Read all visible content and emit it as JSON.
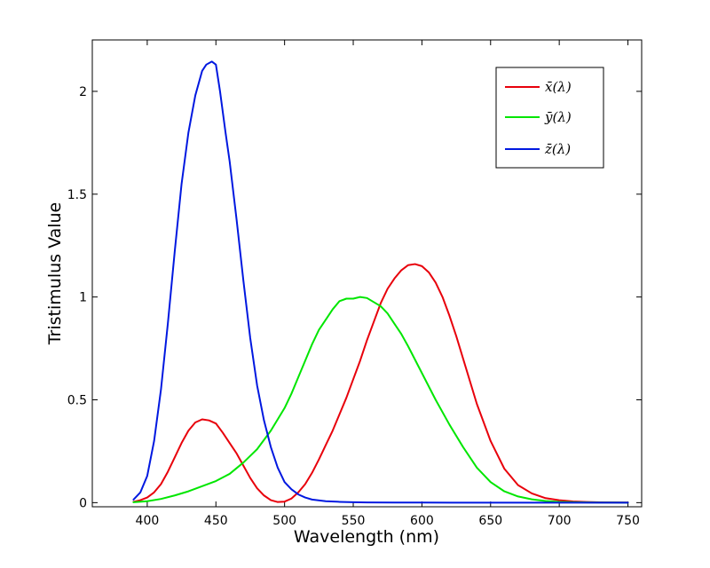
{
  "chart_data": {
    "type": "line",
    "title": "",
    "xlabel": "Wavelength (nm)",
    "ylabel": "Tristimulus Value",
    "xlim": [
      360,
      760
    ],
    "ylim": [
      -0.02,
      2.25
    ],
    "xticks": [
      400,
      450,
      500,
      550,
      600,
      650,
      700,
      750
    ],
    "xtick_labels": [
      "400",
      "450",
      "500",
      "550",
      "600",
      "650",
      "700",
      "750"
    ],
    "yticks": [
      0,
      0.5,
      1,
      1.5,
      2
    ],
    "ytick_labels": [
      "0",
      "0.5",
      "1",
      "1.5",
      "2"
    ],
    "grid": false,
    "legend_position": "top-right",
    "series": [
      {
        "name": "x̄(λ)",
        "color": "#e8000b",
        "x": [
          390,
          395,
          400,
          405,
          410,
          415,
          420,
          425,
          430,
          435,
          440,
          445,
          450,
          455,
          460,
          465,
          470,
          475,
          480,
          485,
          490,
          495,
          500,
          505,
          510,
          515,
          520,
          525,
          530,
          535,
          540,
          545,
          550,
          555,
          560,
          565,
          570,
          575,
          580,
          585,
          590,
          595,
          600,
          605,
          610,
          615,
          620,
          625,
          630,
          640,
          650,
          660,
          670,
          680,
          690,
          700,
          710,
          720,
          730,
          740,
          750
        ],
        "y": [
          0.004,
          0.012,
          0.025,
          0.05,
          0.09,
          0.15,
          0.22,
          0.29,
          0.35,
          0.39,
          0.405,
          0.4,
          0.385,
          0.34,
          0.29,
          0.24,
          0.18,
          0.12,
          0.07,
          0.035,
          0.012,
          0.003,
          0.005,
          0.02,
          0.05,
          0.09,
          0.145,
          0.21,
          0.28,
          0.35,
          0.43,
          0.51,
          0.6,
          0.69,
          0.79,
          0.88,
          0.97,
          1.04,
          1.09,
          1.13,
          1.155,
          1.16,
          1.15,
          1.12,
          1.07,
          1.0,
          0.91,
          0.81,
          0.7,
          0.48,
          0.3,
          0.165,
          0.085,
          0.045,
          0.022,
          0.012,
          0.006,
          0.003,
          0.0015,
          0.0008,
          0.0004
        ]
      },
      {
        "name": "ȳ(λ)",
        "color": "#00e600",
        "x": [
          390,
          400,
          410,
          420,
          430,
          440,
          450,
          460,
          470,
          480,
          490,
          500,
          505,
          510,
          515,
          520,
          525,
          530,
          535,
          540,
          545,
          550,
          555,
          560,
          565,
          570,
          575,
          580,
          585,
          590,
          600,
          610,
          620,
          630,
          640,
          650,
          660,
          670,
          680,
          690,
          700,
          710,
          720,
          730,
          740,
          750
        ],
        "y": [
          0.002,
          0.007,
          0.018,
          0.035,
          0.055,
          0.08,
          0.105,
          0.14,
          0.195,
          0.26,
          0.35,
          0.46,
          0.53,
          0.61,
          0.69,
          0.77,
          0.84,
          0.89,
          0.94,
          0.98,
          0.992,
          0.992,
          1.0,
          0.995,
          0.975,
          0.955,
          0.92,
          0.87,
          0.82,
          0.76,
          0.63,
          0.5,
          0.38,
          0.27,
          0.17,
          0.1,
          0.055,
          0.03,
          0.016,
          0.008,
          0.004,
          0.002,
          0.001,
          0.0006,
          0.0003,
          0.0002
        ]
      },
      {
        "name": "z̄(λ)",
        "color": "#0018e0",
        "x": [
          390,
          395,
          400,
          405,
          410,
          415,
          420,
          425,
          430,
          435,
          440,
          443,
          447,
          450,
          453,
          457,
          460,
          465,
          470,
          475,
          480,
          485,
          490,
          495,
          500,
          505,
          510,
          515,
          520,
          530,
          540,
          550,
          560,
          580,
          600,
          650,
          700,
          750
        ],
        "y": [
          0.015,
          0.05,
          0.13,
          0.3,
          0.55,
          0.87,
          1.22,
          1.55,
          1.8,
          1.98,
          2.1,
          2.13,
          2.145,
          2.13,
          2.0,
          1.8,
          1.66,
          1.38,
          1.08,
          0.8,
          0.57,
          0.4,
          0.27,
          0.17,
          0.1,
          0.065,
          0.04,
          0.025,
          0.015,
          0.007,
          0.004,
          0.002,
          0.001,
          0.0005,
          0.0003,
          0.0001,
          0.0,
          0.0
        ]
      }
    ]
  }
}
